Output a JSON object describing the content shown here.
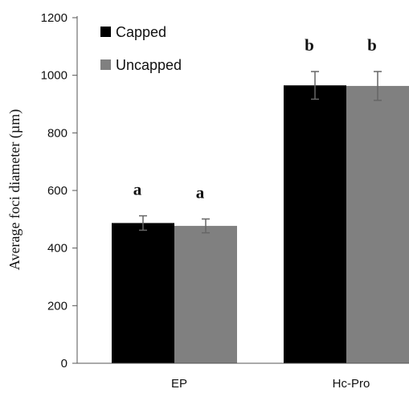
{
  "chart_data": {
    "type": "bar",
    "title": "",
    "xlabel": "",
    "ylabel": "Average foci diameter (µm)",
    "ylim": [
      0,
      1200
    ],
    "yticks": [
      "0",
      "200",
      "400",
      "600",
      "800",
      "1000",
      "1200"
    ],
    "categories": [
      "EP",
      "Hc-Pro"
    ],
    "series": [
      {
        "name": "Capped",
        "color": "#000000",
        "values": [
          487,
          965
        ],
        "errors": [
          25,
          48
        ],
        "significance": [
          "a",
          "b"
        ]
      },
      {
        "name": "Uncapped",
        "color": "#808080",
        "values": [
          477,
          963
        ],
        "errors": [
          24,
          50
        ],
        "significance": [
          "a",
          "b"
        ]
      }
    ],
    "legend_position": "top-left",
    "grid": false
  }
}
